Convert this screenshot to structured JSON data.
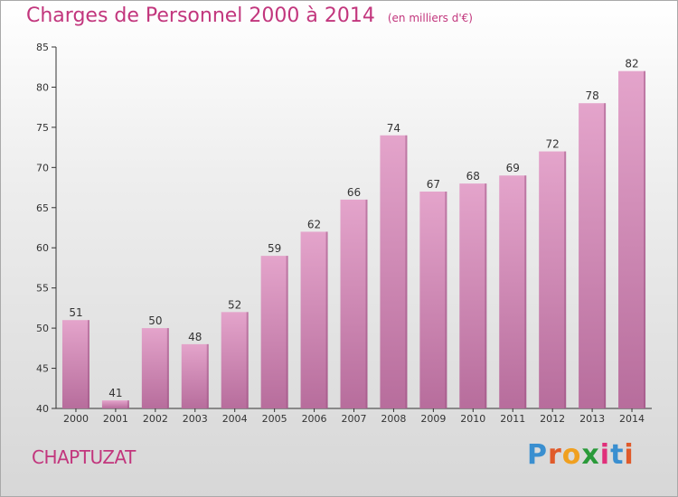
{
  "header": {
    "title": "Charges de Personnel 2000 à 2014",
    "unit_note": "(en milliers d'€)"
  },
  "footer": {
    "commune": "CHAPTUZAT",
    "logo_text": "Proxiti"
  },
  "colors": {
    "title": "#c2367d",
    "bar_top": "#e4a4cb",
    "bar_bottom": "#b76d9c",
    "bar_side": "#9a4f80",
    "logo_letters": [
      "#3a8fd0",
      "#e05a2a",
      "#f0a020",
      "#2a9a3a",
      "#e0307a",
      "#3a8fd0",
      "#e05a2a"
    ]
  },
  "chart_data": {
    "type": "bar",
    "title": "Charges de Personnel 2000 à 2014",
    "categories": [
      "2000",
      "2001",
      "2002",
      "2003",
      "2004",
      "2005",
      "2006",
      "2007",
      "2008",
      "2009",
      "2010",
      "2011",
      "2012",
      "2013",
      "2014"
    ],
    "values": [
      51,
      41,
      50,
      48,
      52,
      59,
      62,
      66,
      74,
      67,
      68,
      69,
      72,
      78,
      82
    ],
    "ylim": [
      40,
      85
    ],
    "yticks": [
      40,
      45,
      50,
      55,
      60,
      65,
      70,
      75,
      80,
      85
    ],
    "grid": false,
    "data_labels": true
  }
}
